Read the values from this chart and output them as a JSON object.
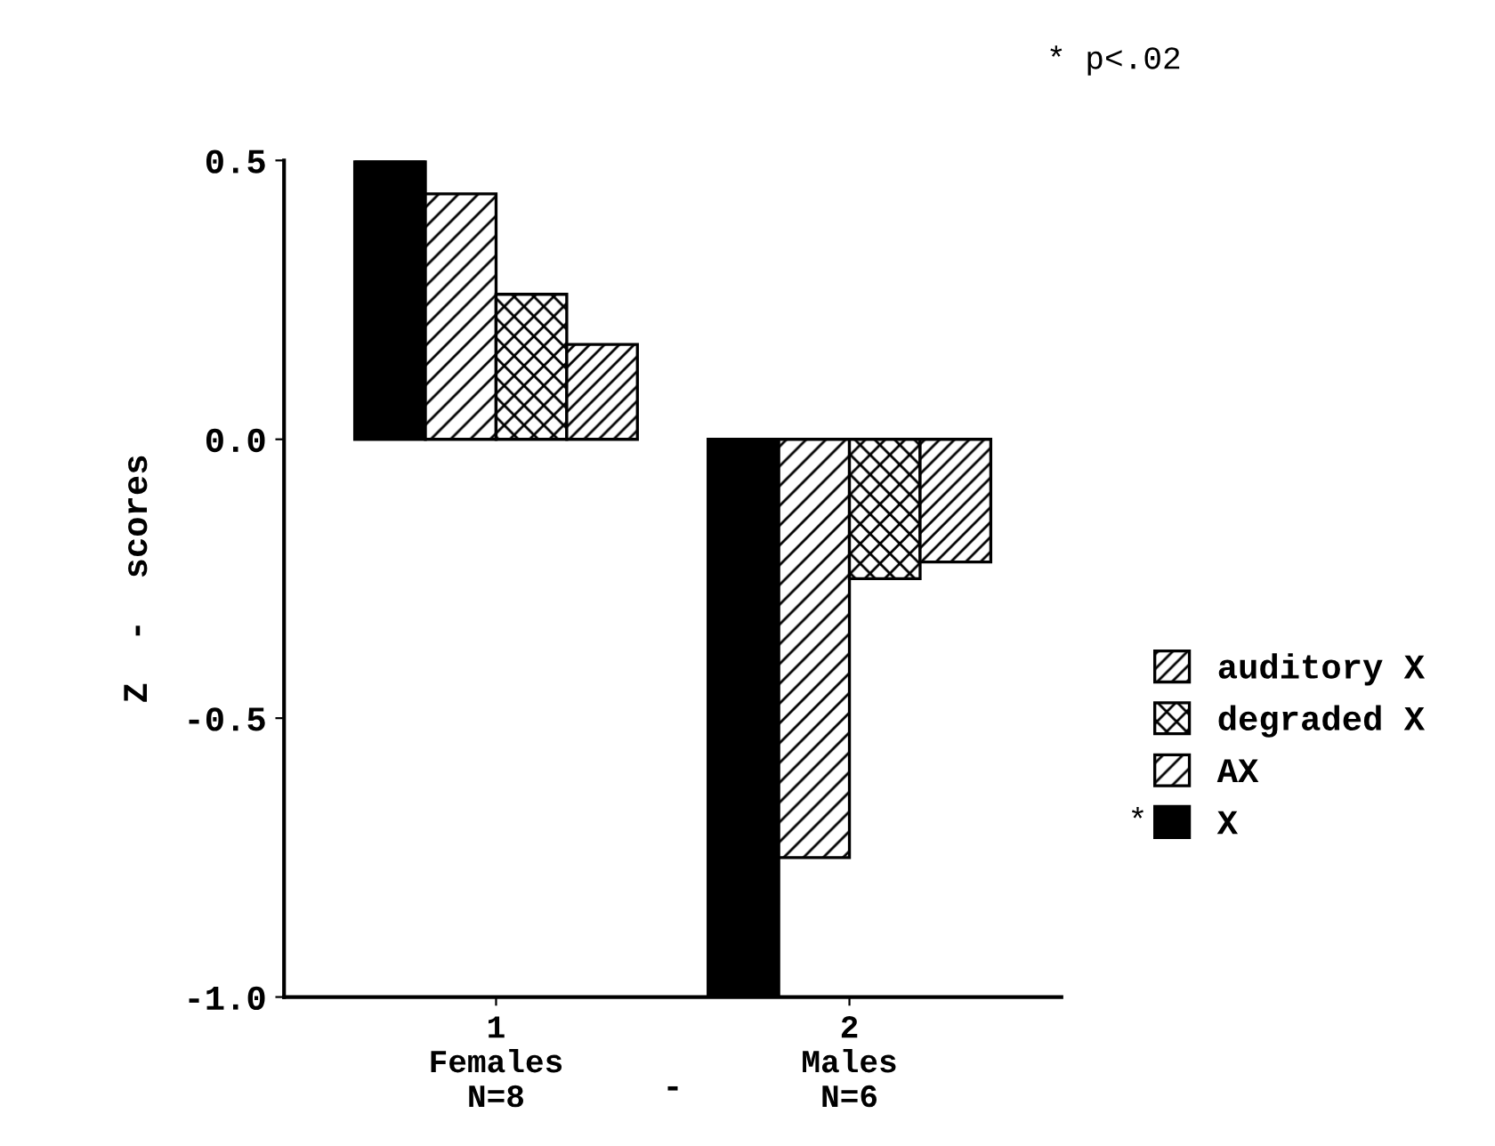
{
  "chart_data": {
    "type": "bar",
    "ylabel": "Z  -  scores",
    "categories": [
      "1\nFemales\nN=8",
      "2\nMales\nN=6"
    ],
    "series": [
      {
        "name": "X",
        "color": "#000000",
        "values": [
          0.5,
          -1.0
        ]
      },
      {
        "name": "AX",
        "color": "#000000",
        "values": [
          0.44,
          -0.75
        ]
      },
      {
        "name": "degraded X",
        "color": "#000000",
        "values": [
          0.26,
          -0.25
        ]
      },
      {
        "name": "auditory X",
        "color": "#000000",
        "values": [
          0.17,
          -0.22
        ]
      }
    ],
    "ylim": [
      -1.0,
      0.5
    ],
    "yticks": [
      {
        "value": 0.5,
        "label": "0.5"
      },
      {
        "value": 0.0,
        "label": "0.0"
      },
      {
        "value": -0.5,
        "label": "-0.5"
      },
      {
        "value": -1.0,
        "label": "-1.0"
      }
    ],
    "legend": "right",
    "grid": false,
    "annotations": [
      "* p<.02",
      "*",
      "-"
    ]
  }
}
